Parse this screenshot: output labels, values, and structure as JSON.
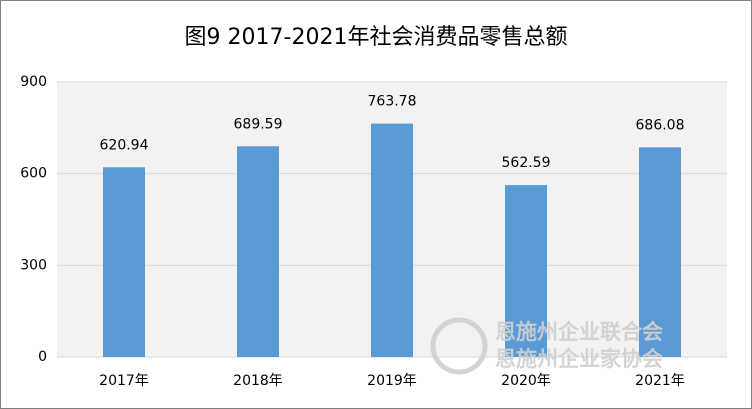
{
  "chart_data": {
    "type": "bar",
    "title": "图9 2017-2021年社会消费品零售总额",
    "categories": [
      "2017年",
      "2018年",
      "2019年",
      "2020年",
      "2021年"
    ],
    "values": [
      620.94,
      689.59,
      763.78,
      562.59,
      686.08
    ],
    "color": "#5b9bd5",
    "ylim": [
      0,
      900
    ],
    "yticks": [
      0,
      300,
      600,
      900
    ],
    "grid": true,
    "watermark": [
      "恩施州企业联合会",
      "恩施州企业家协会"
    ]
  }
}
